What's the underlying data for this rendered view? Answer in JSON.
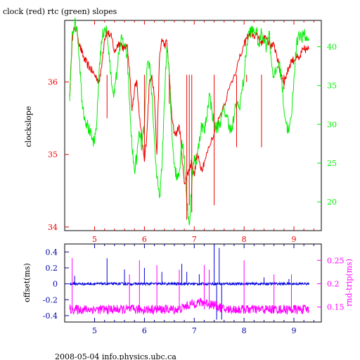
{
  "header": {
    "title": "clock (red) rtc (green) slopes"
  },
  "footer": {
    "caption": "2008-05-04 info.physics.ubc.ca"
  },
  "colors": {
    "clock": "#ee0000",
    "rtc": "#00ee00",
    "offset": "#0000dd",
    "roundtrip": "#ff00ff",
    "axis": "#000000"
  },
  "chart_data": [
    {
      "type": "line",
      "xlim": [
        4.4,
        9.55
      ],
      "x_ticks": [
        "5",
        "6",
        "7",
        "8",
        "9"
      ],
      "ylabel": "clockslope",
      "ylim": [
        33.95,
        36.85
      ],
      "y_ticks": [
        "34",
        "35",
        "36"
      ],
      "y2lim": [
        16.3,
        43.4
      ],
      "y2_ticks": [
        "20",
        "25",
        "30",
        "35",
        "40"
      ],
      "series": [
        {
          "name": "clock",
          "axis": "left",
          "x": [
            4.5,
            4.55,
            4.6,
            4.65,
            4.7,
            4.75,
            4.8,
            4.85,
            4.9,
            4.95,
            5.0,
            5.05,
            5.1,
            5.15,
            5.2,
            5.25,
            5.3,
            5.35,
            5.4,
            5.45,
            5.5,
            5.55,
            5.6,
            5.65,
            5.7,
            5.75,
            5.8,
            5.85,
            5.9,
            5.95,
            6.0,
            6.05,
            6.1,
            6.15,
            6.2,
            6.25,
            6.3,
            6.35,
            6.4,
            6.45,
            6.5,
            6.55,
            6.6,
            6.65,
            6.7,
            6.75,
            6.8,
            6.85,
            6.9,
            6.95,
            7.0,
            7.05,
            7.1,
            7.15,
            7.2,
            7.3,
            7.4,
            7.5,
            7.6,
            7.7,
            7.8,
            7.9,
            8.0,
            8.05,
            8.1,
            8.15,
            8.2,
            8.25,
            8.3,
            8.35,
            8.4,
            8.45,
            8.5,
            8.55,
            8.6,
            8.65,
            8.7,
            8.75,
            8.8,
            8.85,
            8.9,
            8.95,
            9.0,
            9.05,
            9.1,
            9.15,
            9.2,
            9.25,
            9.3
          ],
          "y": [
            35.8,
            36.6,
            36.75,
            36.7,
            36.5,
            36.4,
            36.3,
            36.25,
            36.2,
            36.15,
            36.1,
            36.05,
            36.0,
            36.3,
            36.6,
            36.7,
            36.65,
            36.6,
            36.4,
            36.5,
            36.55,
            36.5,
            36.45,
            36.5,
            36.2,
            35.6,
            35.9,
            36.0,
            35.5,
            35.2,
            34.9,
            35.3,
            36.0,
            36.1,
            35.8,
            35.0,
            36.3,
            36.6,
            36.5,
            36.55,
            36.1,
            35.5,
            35.3,
            35.3,
            35.4,
            35.0,
            34.6,
            34.7,
            34.8,
            34.9,
            34.7,
            35.0,
            34.9,
            34.8,
            34.9,
            35.1,
            35.3,
            35.5,
            35.7,
            35.9,
            36.1,
            36.3,
            36.5,
            36.6,
            36.65,
            36.7,
            36.6,
            36.65,
            36.6,
            36.5,
            36.65,
            36.6,
            36.55,
            36.5,
            36.5,
            36.4,
            36.2,
            36.1,
            36.0,
            36.1,
            36.2,
            36.3,
            36.3,
            36.35,
            36.3,
            36.4,
            36.45,
            36.45,
            36.45
          ]
        },
        {
          "name": "rtc",
          "axis": "right",
          "x": [
            4.5,
            4.55,
            4.6,
            4.65,
            4.7,
            4.75,
            4.8,
            4.85,
            4.9,
            4.95,
            5.0,
            5.05,
            5.1,
            5.15,
            5.2,
            5.25,
            5.3,
            5.35,
            5.4,
            5.45,
            5.5,
            5.55,
            5.6,
            5.65,
            5.7,
            5.75,
            5.8,
            5.85,
            5.9,
            5.95,
            6.0,
            6.05,
            6.1,
            6.15,
            6.2,
            6.25,
            6.3,
            6.35,
            6.4,
            6.45,
            6.5,
            6.55,
            6.6,
            6.65,
            6.7,
            6.75,
            6.8,
            6.85,
            6.9,
            6.95,
            7.0,
            7.05,
            7.1,
            7.15,
            7.2,
            7.25,
            7.3,
            7.35,
            7.4,
            7.45,
            7.5,
            7.55,
            7.6,
            7.65,
            7.7,
            7.75,
            7.8,
            7.85,
            7.9,
            7.95,
            8.0,
            8.05,
            8.1,
            8.15,
            8.2,
            8.25,
            8.3,
            8.35,
            8.4,
            8.45,
            8.5,
            8.55,
            8.6,
            8.65,
            8.7,
            8.75,
            8.8,
            8.85,
            8.9,
            8.95,
            9.0,
            9.05,
            9.1,
            9.15,
            9.2,
            9.25,
            9.3
          ],
          "y": [
            33.0,
            42.0,
            43.0,
            42.5,
            38.0,
            33.0,
            31.0,
            30.0,
            29.0,
            28.0,
            27.5,
            31.0,
            38.0,
            41.0,
            42.5,
            42.0,
            38.0,
            35.0,
            34.0,
            37.0,
            40.0,
            41.0,
            40.0,
            39.0,
            33.0,
            27.0,
            24.0,
            26.0,
            29.0,
            27.0,
            30.0,
            37.0,
            38.0,
            34.0,
            28.0,
            23.0,
            20.5,
            24.0,
            33.0,
            40.0,
            36.0,
            29.0,
            25.0,
            23.0,
            24.0,
            28.0,
            26.0,
            20.0,
            17.0,
            22.0,
            26.0,
            25.0,
            28.0,
            30.0,
            29.0,
            31.0,
            34.0,
            32.0,
            30.0,
            29.5,
            30.0,
            31.0,
            32.0,
            31.0,
            30.0,
            29.0,
            31.0,
            33.0,
            32.0,
            34.0,
            36.0,
            40.0,
            42.0,
            42.0,
            42.0,
            42.0,
            40.0,
            42.0,
            41.0,
            40.0,
            42.0,
            38.0,
            36.0,
            37.0,
            38.0,
            36.0,
            32.0,
            30.0,
            29.0,
            31.0,
            36.0,
            40.0,
            42.0,
            41.0,
            41.5,
            41.0,
            41.0
          ]
        }
      ]
    },
    {
      "type": "line",
      "xlim": [
        4.4,
        9.55
      ],
      "x_ticks": [
        "5",
        "6",
        "7",
        "8",
        "9"
      ],
      "ylabel": "offset(ms)",
      "ylim": [
        -0.48,
        0.5
      ],
      "y_ticks": [
        "-0.4",
        "-0.2",
        "0",
        "0.2",
        "0.4"
      ],
      "y2label": "rnd-trip(ms)",
      "y2lim": [
        0.118,
        0.285
      ],
      "y2_ticks": [
        "0.15",
        "0.2",
        "0.25"
      ],
      "series": [
        {
          "name": "offset",
          "axis": "left",
          "baseline": 0.0,
          "noise": 0.015,
          "x_range": [
            4.5,
            9.3
          ],
          "spikes": [
            {
              "x": 4.6,
              "y": 0.1
            },
            {
              "x": 5.25,
              "y": 0.32
            },
            {
              "x": 5.6,
              "y": 0.18
            },
            {
              "x": 6.0,
              "y": 0.2
            },
            {
              "x": 6.35,
              "y": 0.15
            },
            {
              "x": 6.75,
              "y": 0.25
            },
            {
              "x": 6.85,
              "y": 0.15
            },
            {
              "x": 7.1,
              "y": 0.12
            },
            {
              "x": 7.4,
              "y": 0.5
            },
            {
              "x": 7.45,
              "y": -0.45
            },
            {
              "x": 7.5,
              "y": 0.45
            },
            {
              "x": 7.55,
              "y": -0.45
            },
            {
              "x": 8.4,
              "y": 0.08
            },
            {
              "x": 8.9,
              "y": 0.06
            }
          ]
        },
        {
          "name": "roundtrip",
          "axis": "right",
          "baseline": 0.145,
          "noise": 0.01,
          "x_range": [
            4.5,
            9.3
          ],
          "hump": {
            "x_start": 6.7,
            "x_end": 7.6,
            "height": 0.015
          },
          "spikes": [
            {
              "x": 4.55,
              "y": 0.255
            },
            {
              "x": 5.7,
              "y": 0.22
            },
            {
              "x": 5.9,
              "y": 0.25
            },
            {
              "x": 6.25,
              "y": 0.24
            },
            {
              "x": 6.7,
              "y": 0.23
            },
            {
              "x": 7.2,
              "y": 0.24
            },
            {
              "x": 7.3,
              "y": 0.23
            },
            {
              "x": 8.0,
              "y": 0.25
            },
            {
              "x": 8.6,
              "y": 0.22
            },
            {
              "x": 8.95,
              "y": 0.22
            }
          ]
        }
      ]
    }
  ]
}
